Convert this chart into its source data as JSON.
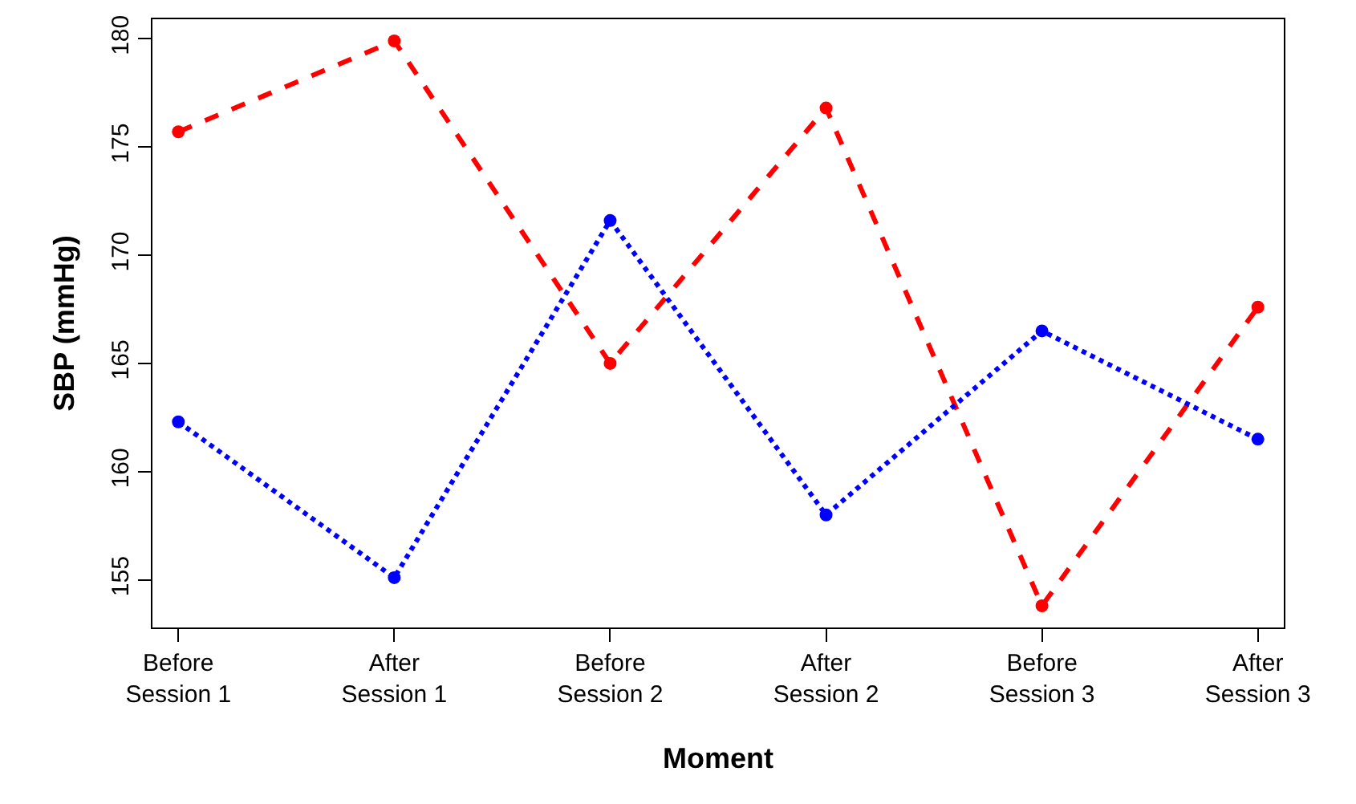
{
  "chart_data": {
    "type": "line",
    "xlabel": "Moment",
    "ylabel": "SBP (mmHg)",
    "categories": [
      "Before Session 1",
      "After Session 1",
      "Before Session 2",
      "After Session 2",
      "Before Session 3",
      "After Session 3"
    ],
    "series": [
      {
        "color": "#ff0000",
        "values": [
          175.7,
          179.9,
          165.0,
          176.8,
          153.8,
          167.6
        ],
        "line_style": "dashed"
      },
      {
        "color": "#0000ff",
        "values": [
          162.3,
          155.1,
          171.6,
          158.0,
          166.5,
          161.5
        ],
        "line_style": "dotted"
      }
    ],
    "ylim": [
      152.8,
      180.9
    ],
    "yticks": [
      155,
      160,
      165,
      170,
      175,
      180
    ],
    "marker": "circle",
    "grid": false
  }
}
